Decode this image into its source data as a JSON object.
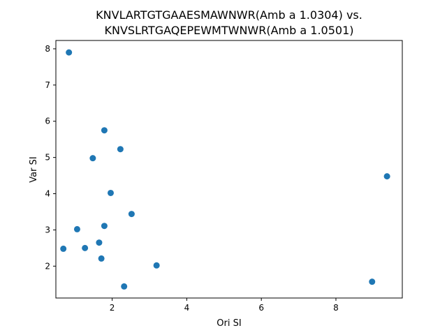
{
  "chart_data": {
    "type": "scatter",
    "title_lines": [
      "KNVLARTGTGAAESMAWNWR(Amb a 1.0304) vs.",
      "KNVSLRTGAQEPEWMTWNWR(Amb a 1.0501)"
    ],
    "xlabel": "Ori SI",
    "ylabel": "Var SI",
    "xlim": [
      0.49,
      9.78
    ],
    "ylim": [
      1.12,
      8.23
    ],
    "x_ticks": [
      2,
      4,
      6,
      8
    ],
    "y_ticks": [
      2,
      3,
      4,
      5,
      6,
      7,
      8
    ],
    "grid": false,
    "marker_color": "#1f77b4",
    "points": [
      {
        "x": 0.84,
        "y": 7.9
      },
      {
        "x": 1.79,
        "y": 5.75
      },
      {
        "x": 2.22,
        "y": 5.23
      },
      {
        "x": 1.48,
        "y": 4.98
      },
      {
        "x": 1.96,
        "y": 4.02
      },
      {
        "x": 2.52,
        "y": 3.44
      },
      {
        "x": 1.79,
        "y": 3.11
      },
      {
        "x": 1.06,
        "y": 3.02
      },
      {
        "x": 1.65,
        "y": 2.65
      },
      {
        "x": 0.69,
        "y": 2.48
      },
      {
        "x": 1.27,
        "y": 2.5
      },
      {
        "x": 1.71,
        "y": 2.21
      },
      {
        "x": 3.19,
        "y": 2.02
      },
      {
        "x": 2.32,
        "y": 1.44
      },
      {
        "x": 8.97,
        "y": 1.57
      },
      {
        "x": 9.37,
        "y": 4.48
      }
    ]
  }
}
